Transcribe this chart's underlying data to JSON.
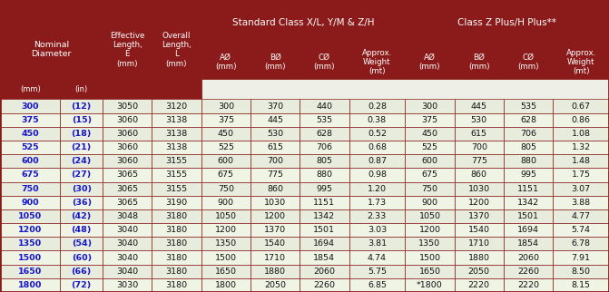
{
  "header_bg": "#8B1A1A",
  "header_bg2": "#7B1010",
  "row_bg_even": "#EEF0E8",
  "row_bg_odd": "#F5F5EC",
  "border_color": "#8B1A1A",
  "white": "#FFFFFF",
  "blue_bold": "#1414CC",
  "data_text": "#111111",
  "figsize": [
    6.71,
    3.22
  ],
  "dpi": 100,
  "rows": [
    [
      "300",
      "(12)",
      "3050",
      "3120",
      "300",
      "370",
      "440",
      "0.28",
      "300",
      "445",
      "535",
      "0.67"
    ],
    [
      "375",
      "(15)",
      "3060",
      "3138",
      "375",
      "445",
      "535",
      "0.38",
      "375",
      "530",
      "628",
      "0.86"
    ],
    [
      "450",
      "(18)",
      "3060",
      "3138",
      "450",
      "530",
      "628",
      "0.52",
      "450",
      "615",
      "706",
      "1.08"
    ],
    [
      "525",
      "(21)",
      "3060",
      "3138",
      "525",
      "615",
      "706",
      "0.68",
      "525",
      "700",
      "805",
      "1.32"
    ],
    [
      "600",
      "(24)",
      "3060",
      "3155",
      "600",
      "700",
      "805",
      "0.87",
      "600",
      "775",
      "880",
      "1.48"
    ],
    [
      "675",
      "(27)",
      "3065",
      "3155",
      "675",
      "775",
      "880",
      "0.98",
      "675",
      "860",
      "995",
      "1.75"
    ],
    [
      "750",
      "(30)",
      "3065",
      "3155",
      "750",
      "860",
      "995",
      "1.20",
      "750",
      "1030",
      "1151",
      "3.07"
    ],
    [
      "900",
      "(36)",
      "3065",
      "3190",
      "900",
      "1030",
      "1151",
      "1.73",
      "900",
      "1200",
      "1342",
      "3.88"
    ],
    [
      "1050",
      "(42)",
      "3048",
      "3180",
      "1050",
      "1200",
      "1342",
      "2.33",
      "1050",
      "1370",
      "1501",
      "4.77"
    ],
    [
      "1200",
      "(48)",
      "3040",
      "3180",
      "1200",
      "1370",
      "1501",
      "3.03",
      "1200",
      "1540",
      "1694",
      "5.74"
    ],
    [
      "1350",
      "(54)",
      "3040",
      "3180",
      "1350",
      "1540",
      "1694",
      "3.81",
      "1350",
      "1710",
      "1854",
      "6.78"
    ],
    [
      "1500",
      "(60)",
      "3040",
      "3180",
      "1500",
      "1710",
      "1854",
      "4.74",
      "1500",
      "1880",
      "2060",
      "7.91"
    ],
    [
      "1650",
      "(66)",
      "3040",
      "3180",
      "1650",
      "1880",
      "2060",
      "5.75",
      "1650",
      "2050",
      "2260",
      "8.50"
    ],
    [
      "1800",
      "(72)",
      "3030",
      "3180",
      "1800",
      "2050",
      "2260",
      "6.85",
      "*1800",
      "2220",
      "2220",
      "8.15"
    ]
  ]
}
